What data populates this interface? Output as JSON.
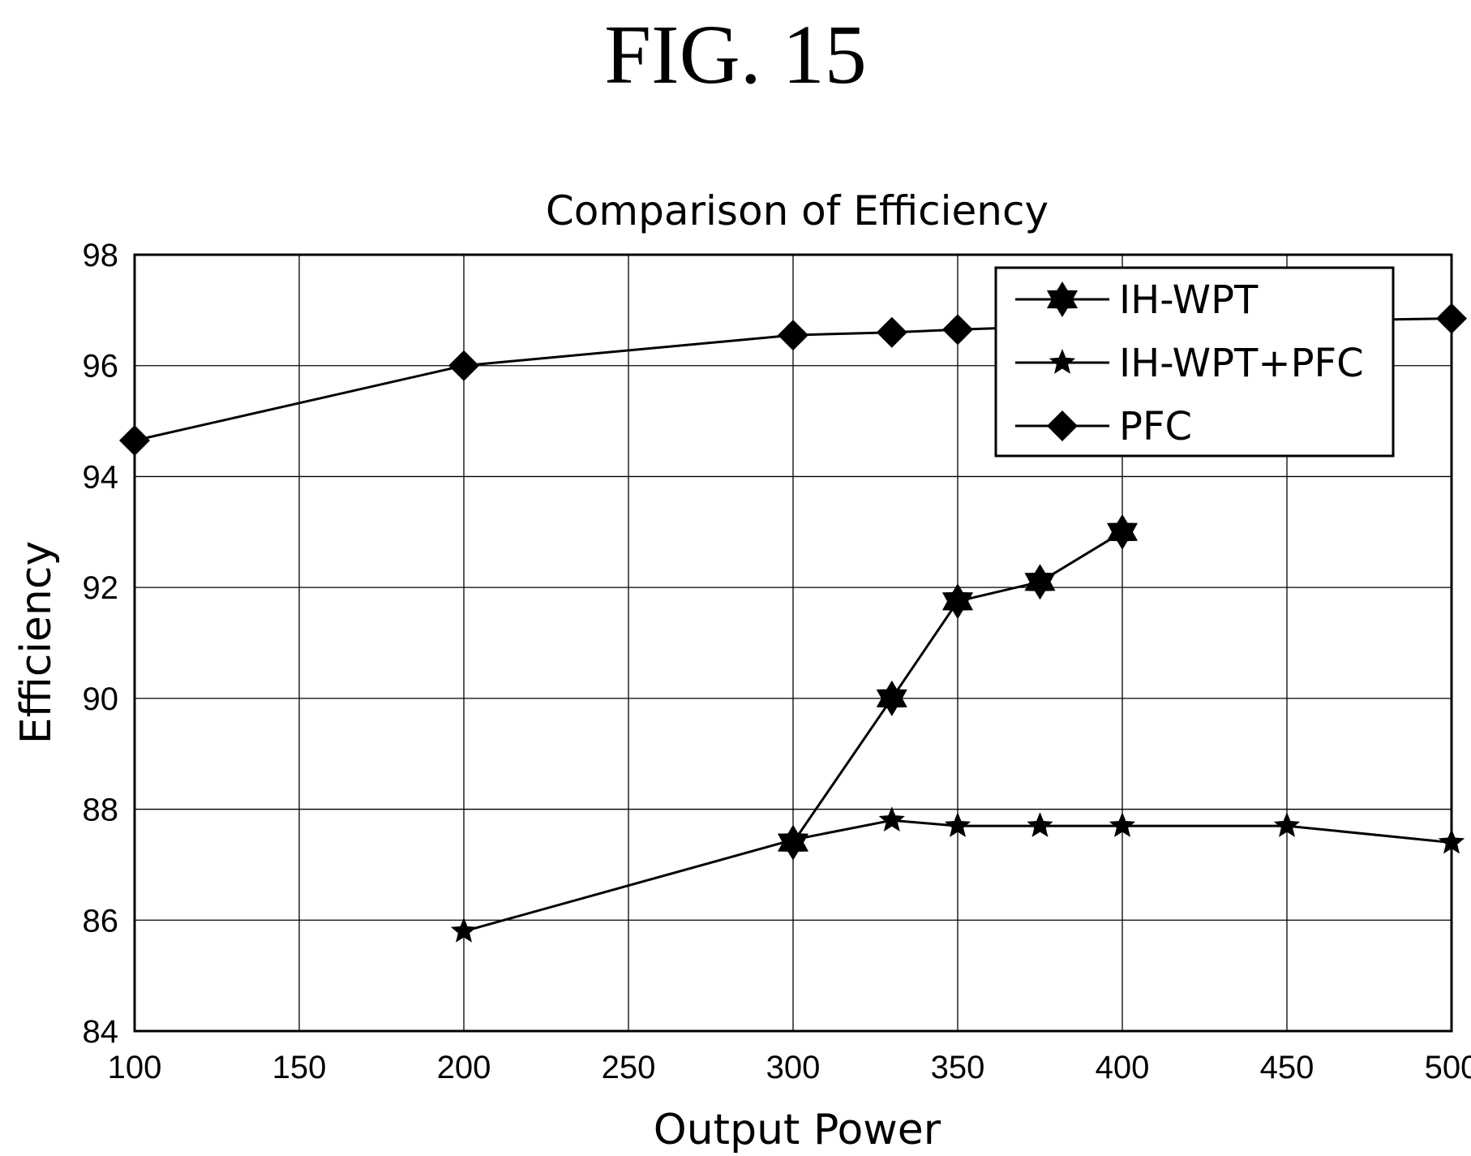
{
  "figure": {
    "label": "FIG. 15"
  },
  "chart_data": {
    "type": "line",
    "title": "Comparison of Efficiency",
    "xlabel": "Output Power",
    "ylabel": "Efficiency",
    "xlim": [
      100,
      500
    ],
    "ylim": [
      84,
      98
    ],
    "x_ticks": [
      100,
      150,
      200,
      250,
      300,
      350,
      400,
      450,
      500
    ],
    "y_ticks": [
      84,
      86,
      88,
      90,
      92,
      94,
      96,
      98
    ],
    "grid": true,
    "legend_position": "top-right",
    "series": [
      {
        "name": "IH-WPT",
        "marker": "six-point-star",
        "points": [
          [
            300,
            87.4
          ],
          [
            330,
            90.0
          ],
          [
            350,
            91.75
          ],
          [
            375,
            92.1
          ],
          [
            400,
            93.0
          ]
        ]
      },
      {
        "name": "IH-WPT+PFC",
        "marker": "five-point-star",
        "points": [
          [
            200,
            85.8
          ],
          [
            300,
            87.45
          ],
          [
            330,
            87.8
          ],
          [
            350,
            87.7
          ],
          [
            375,
            87.7
          ],
          [
            400,
            87.7
          ],
          [
            450,
            87.7
          ],
          [
            500,
            87.4
          ]
        ]
      },
      {
        "name": "PFC",
        "marker": "diamond",
        "points": [
          [
            100,
            94.65
          ],
          [
            200,
            96.0
          ],
          [
            300,
            96.55
          ],
          [
            330,
            96.6
          ],
          [
            350,
            96.65
          ],
          [
            375,
            96.7
          ],
          [
            400,
            96.75
          ],
          [
            450,
            96.8
          ],
          [
            500,
            96.85
          ]
        ]
      }
    ]
  },
  "colors": {
    "line": "#000000",
    "grid": "#000000",
    "background": "#ffffff"
  }
}
